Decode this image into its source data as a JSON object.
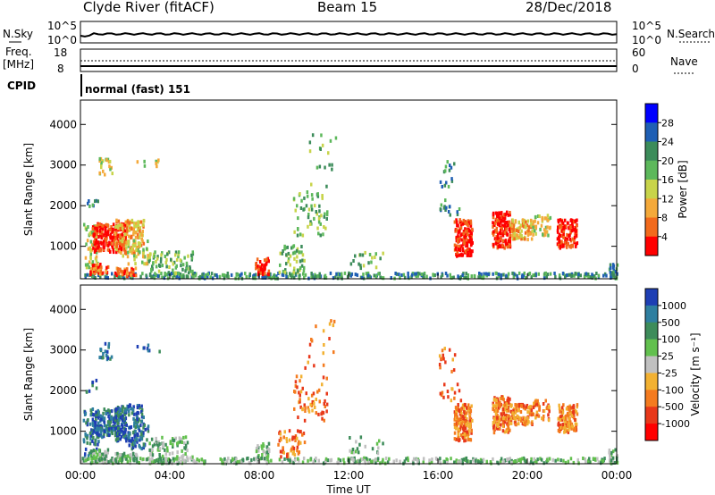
{
  "header": {
    "station": "Clyde River (fitACF)",
    "beam": "Beam 15",
    "date": "28/Dec/2018"
  },
  "noise_panel": {
    "left_label": "N.Sky",
    "right_label": "N.Search",
    "left_top_tick": "10^5",
    "left_bottom_tick": "10^0",
    "right_top_tick": "10^5",
    "right_bottom_tick": "10^0"
  },
  "freq_panel": {
    "left_label_line1": "Freq.",
    "left_label_line2": "[MHz]",
    "right_label": "Nave",
    "left_top_tick": "18",
    "left_bottom_tick": "8",
    "right_top_tick": "60",
    "right_bottom_tick": "0"
  },
  "cpid_panel": {
    "label": "CPID",
    "mode_text": "normal (fast) 151"
  },
  "chart_data": [
    {
      "type": "heatmap",
      "name": "power",
      "ylabel": "Slant Range [km]",
      "yticks": [
        "1000",
        "2000",
        "3000",
        "4000"
      ],
      "ylim": [
        200,
        4600
      ],
      "xlim": [
        0,
        24
      ],
      "colorbar_label": "Power [dB]",
      "colorbar_ticks": [
        "4",
        "8",
        "12",
        "16",
        "20",
        "24",
        "28"
      ],
      "colors": [
        "#0000ff",
        "#1f5fb4",
        "#3c8c5a",
        "#5db85b",
        "#c8d44a",
        "#f4a93a",
        "#f26a1c",
        "#ff0000"
      ]
    },
    {
      "type": "heatmap",
      "name": "velocity",
      "ylabel": "Slant Range [km]",
      "yticks": [
        "1000",
        "2000",
        "3000",
        "4000"
      ],
      "ylim": [
        200,
        4600
      ],
      "xlim": [
        0,
        24
      ],
      "xlabel": "Time UT",
      "xticks": [
        "00:00",
        "04:00",
        "08:00",
        "12:00",
        "16:00",
        "20:00",
        "00:00"
      ],
      "colorbar_label": "Velocity [m s⁻¹]",
      "colorbar_ticks": [
        "1000",
        "500",
        "100",
        "25",
        "-25",
        "-100",
        "-500",
        "-1000"
      ],
      "colors": [
        "#1e3fb4",
        "#2f7fa0",
        "#3d8c5a",
        "#62c04e",
        "#c0c0c0",
        "#f2b132",
        "#f47b1f",
        "#e8381a",
        "#ff0000"
      ]
    }
  ]
}
